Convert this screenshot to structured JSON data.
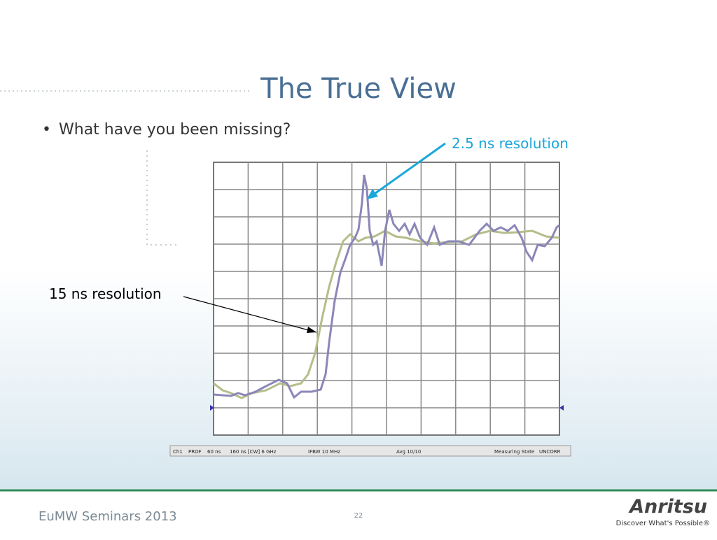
{
  "slide": {
    "title": "The True View",
    "bullet": "What have you been missing?",
    "annotations": {
      "fine": "2.5 ns resolution",
      "coarse": "15 ns resolution"
    },
    "status_bar": [
      "Ch1",
      "PROF",
      "60 ns",
      "160 ns [CW] 6 GHz",
      "IFBW 10 MHz",
      "Avg 10/10",
      "Measuring State",
      "UNCORR"
    ],
    "footer": {
      "event": "EuMW Seminars 2013",
      "page": 22,
      "brand": "Anritsu",
      "tagline": "Discover What's Possible®"
    }
  }
}
